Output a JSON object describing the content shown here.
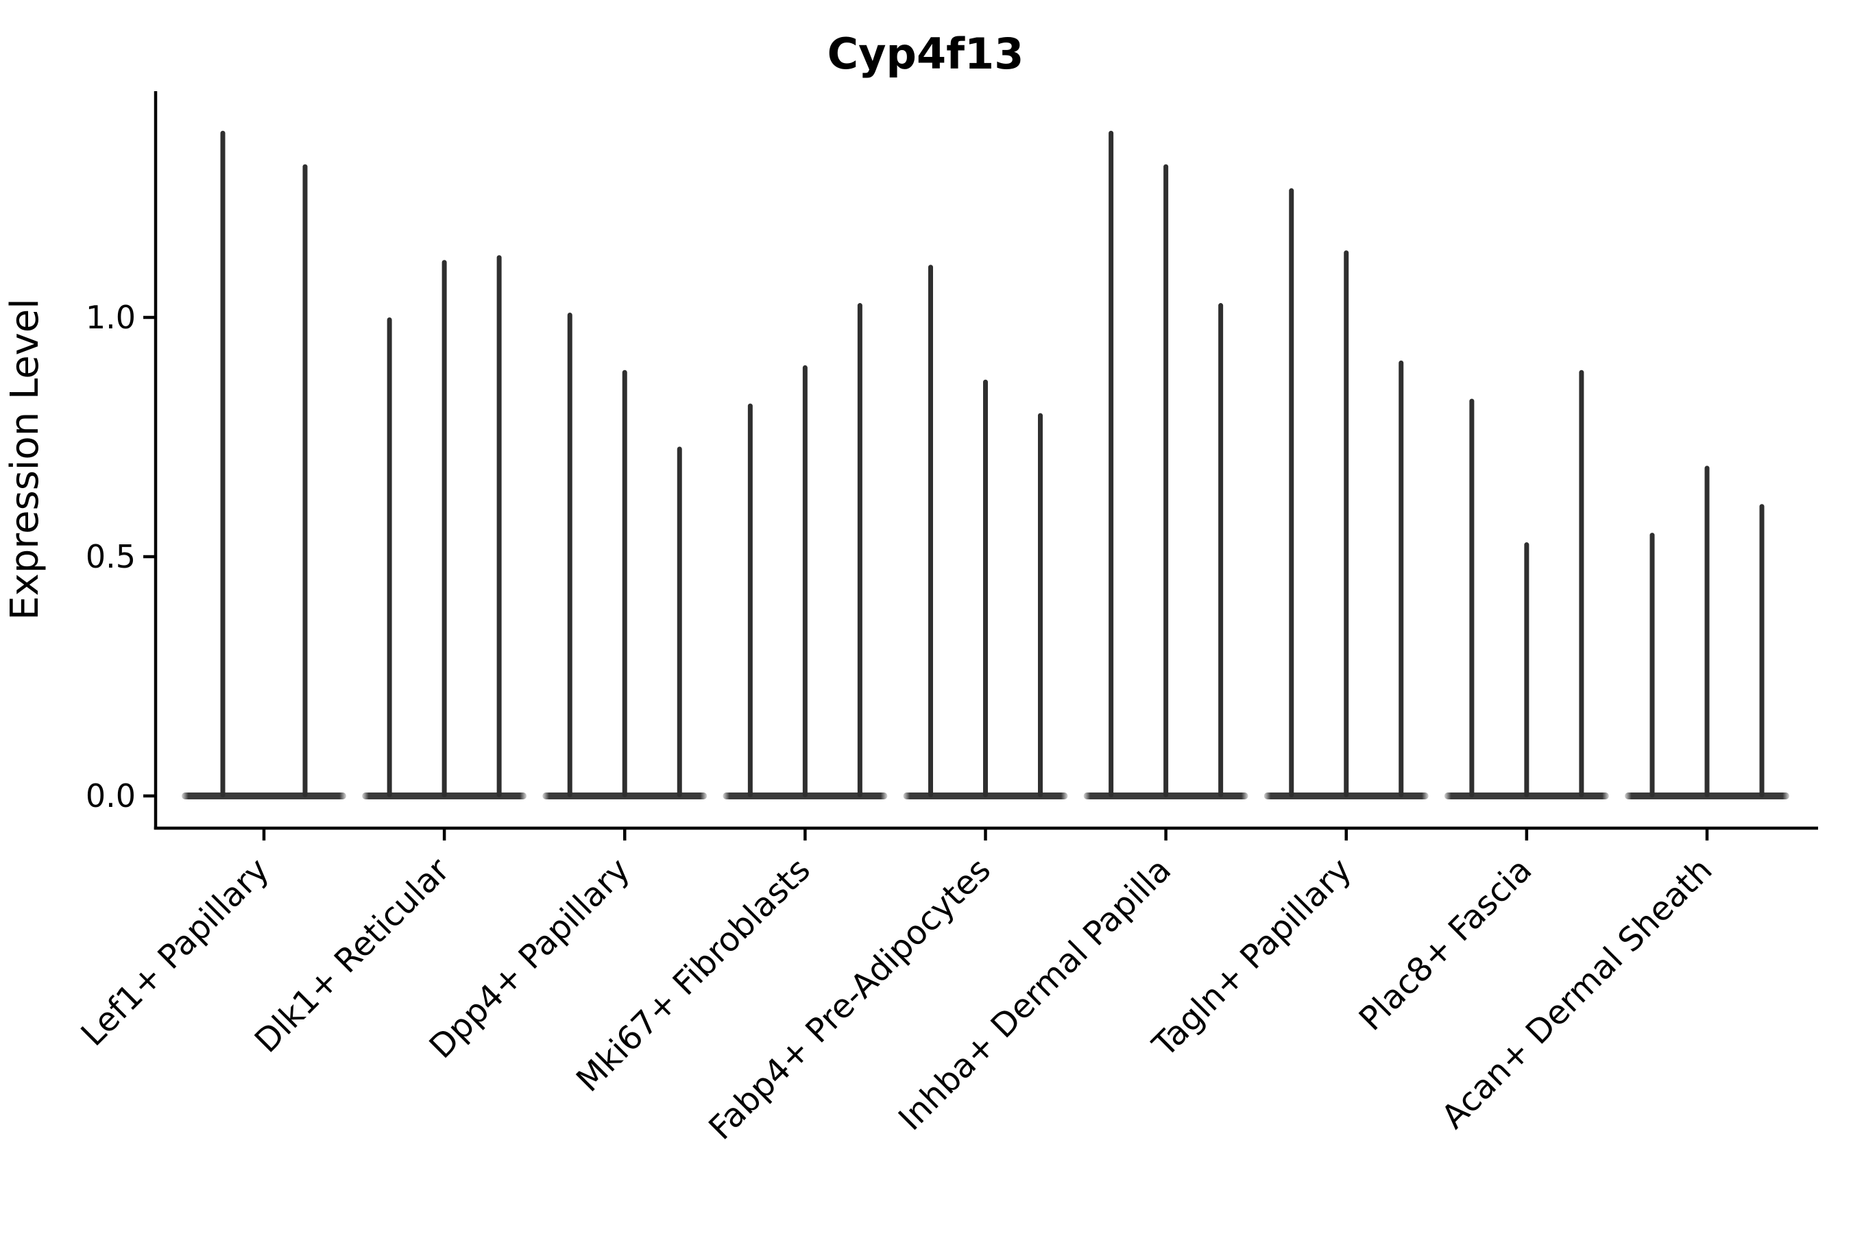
{
  "chart_data": {
    "type": "violin",
    "title": "Cyp4f13",
    "ylabel": "Expression Level",
    "xlabel": "",
    "ytick_labels": [
      "0.0",
      "0.5",
      "1.0"
    ],
    "yticks": [
      0.0,
      0.5,
      1.0
    ],
    "ylim": [
      -0.07,
      1.47
    ],
    "grid": false,
    "legend": "none",
    "violin_color": "#2f2f2f",
    "base_color": "#3a3a3a",
    "axis_color": "#000000",
    "description": "Violin plot of Cyp4f13 expression; each category holds thin violins (most cells at 0, spike to max expression). Values are the max expression level reached by each violin spike.",
    "groups": [
      {
        "label": "Lef1+ Papillary",
        "violin_max_values": [
          1.39,
          1.32
        ]
      },
      {
        "label": "Dlk1+ Reticular",
        "violin_max_values": [
          1.0,
          1.12,
          1.13
        ]
      },
      {
        "label": "Dpp4+ Papillary",
        "violin_max_values": [
          1.01,
          0.89,
          0.73
        ]
      },
      {
        "label": "Mki67+ Fibroblasts",
        "violin_max_values": [
          0.82,
          0.9,
          1.03
        ]
      },
      {
        "label": "Fabp4+ Pre-Adipocytes",
        "violin_max_values": [
          1.11,
          0.87,
          0.8
        ]
      },
      {
        "label": "Inhba+ Dermal Papilla",
        "violin_max_values": [
          1.39,
          1.32,
          1.03
        ]
      },
      {
        "label": "Tagln+ Papillary",
        "violin_max_values": [
          1.27,
          1.14,
          0.91
        ]
      },
      {
        "label": "Plac8+ Fascia",
        "violin_max_values": [
          0.83,
          0.53,
          0.89
        ]
      },
      {
        "label": "Acan+ Dermal Sheath",
        "violin_max_values": [
          0.55,
          0.69,
          0.61
        ]
      }
    ]
  }
}
